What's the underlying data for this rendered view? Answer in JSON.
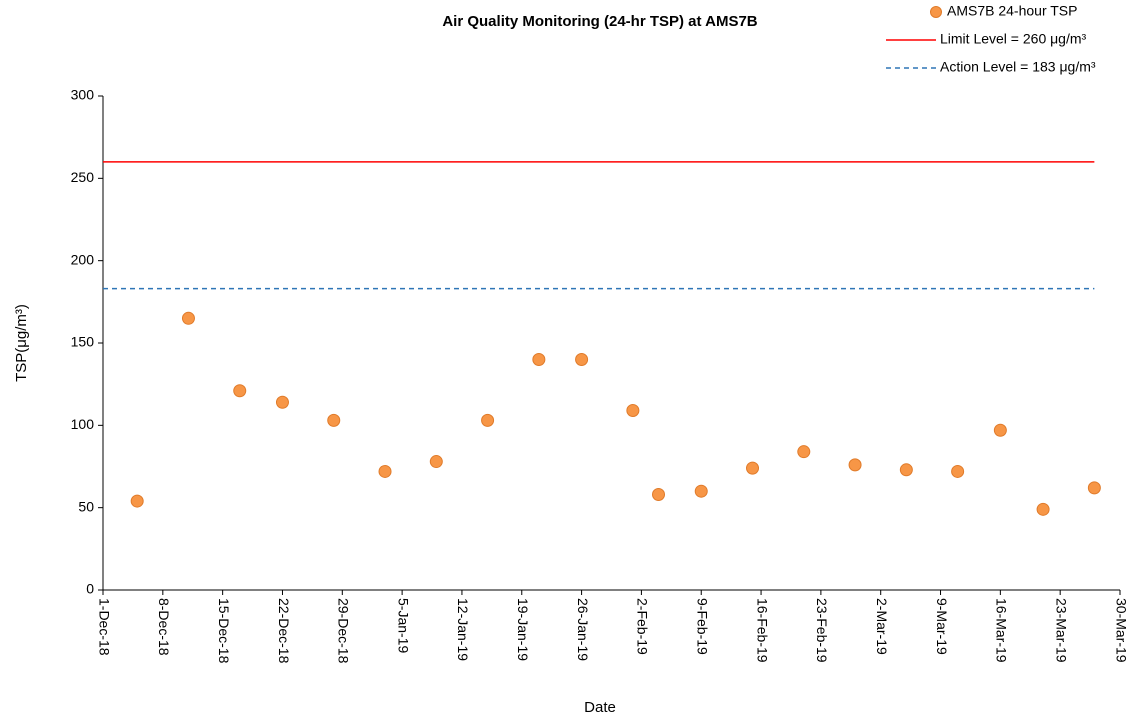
{
  "chart_data": {
    "type": "scatter",
    "title": "Air Quality Monitoring (24-hr TSP) at AMS7B",
    "x_label": "Date",
    "y_label": "TSP(μg/m³)",
    "series": [
      {
        "name": "AMS7B 24-hour TSP",
        "color": "#f79646",
        "x": [
          "2018-12-05",
          "2018-12-11",
          "2018-12-17",
          "2018-12-22",
          "2018-12-28",
          "2019-01-03",
          "2019-01-09",
          "2019-01-15",
          "2019-01-21",
          "2019-01-26",
          "2019-02-01",
          "2019-02-04",
          "2019-02-09",
          "2019-02-15",
          "2019-02-21",
          "2019-02-27",
          "2019-03-05",
          "2019-03-11",
          "2019-03-16",
          "2019-03-21",
          "2019-03-27"
        ],
        "values": [
          54,
          165,
          121,
          114,
          103,
          72,
          78,
          103,
          140,
          140,
          109,
          58,
          60,
          74,
          84,
          76,
          73,
          72,
          97,
          49,
          62
        ]
      }
    ],
    "reference_lines": [
      {
        "name": "Limit Level = 260 μg/m³",
        "value": 260,
        "color": "#ff0000",
        "dashed": false
      },
      {
        "name": "Action Level = 183 μg/m³",
        "value": 183,
        "color": "#2e75b6",
        "dashed": true
      }
    ],
    "xlim": [
      "2018-12-01",
      "2019-03-30"
    ],
    "xticks": [
      {
        "value": "2018-12-01",
        "label": "1-Dec-18"
      },
      {
        "value": "2018-12-08",
        "label": "8-Dec-18"
      },
      {
        "value": "2018-12-15",
        "label": "15-Dec-18"
      },
      {
        "value": "2018-12-22",
        "label": "22-Dec-18"
      },
      {
        "value": "2018-12-29",
        "label": "29-Dec-18"
      },
      {
        "value": "2019-01-05",
        "label": "5-Jan-19"
      },
      {
        "value": "2019-01-12",
        "label": "12-Jan-19"
      },
      {
        "value": "2019-01-19",
        "label": "19-Jan-19"
      },
      {
        "value": "2019-01-26",
        "label": "26-Jan-19"
      },
      {
        "value": "2019-02-02",
        "label": "2-Feb-19"
      },
      {
        "value": "2019-02-09",
        "label": "9-Feb-19"
      },
      {
        "value": "2019-02-16",
        "label": "16-Feb-19"
      },
      {
        "value": "2019-02-23",
        "label": "23-Feb-19"
      },
      {
        "value": "2019-03-02",
        "label": "2-Mar-19"
      },
      {
        "value": "2019-03-09",
        "label": "9-Mar-19"
      },
      {
        "value": "2019-03-16",
        "label": "16-Mar-19"
      },
      {
        "value": "2019-03-23",
        "label": "23-Mar-19"
      },
      {
        "value": "2019-03-30",
        "label": "30-Mar-19"
      }
    ],
    "ylim": [
      0,
      300
    ],
    "yticks": [
      0,
      50,
      100,
      150,
      200,
      250,
      300
    ],
    "grid": false,
    "legend": "top-right"
  }
}
